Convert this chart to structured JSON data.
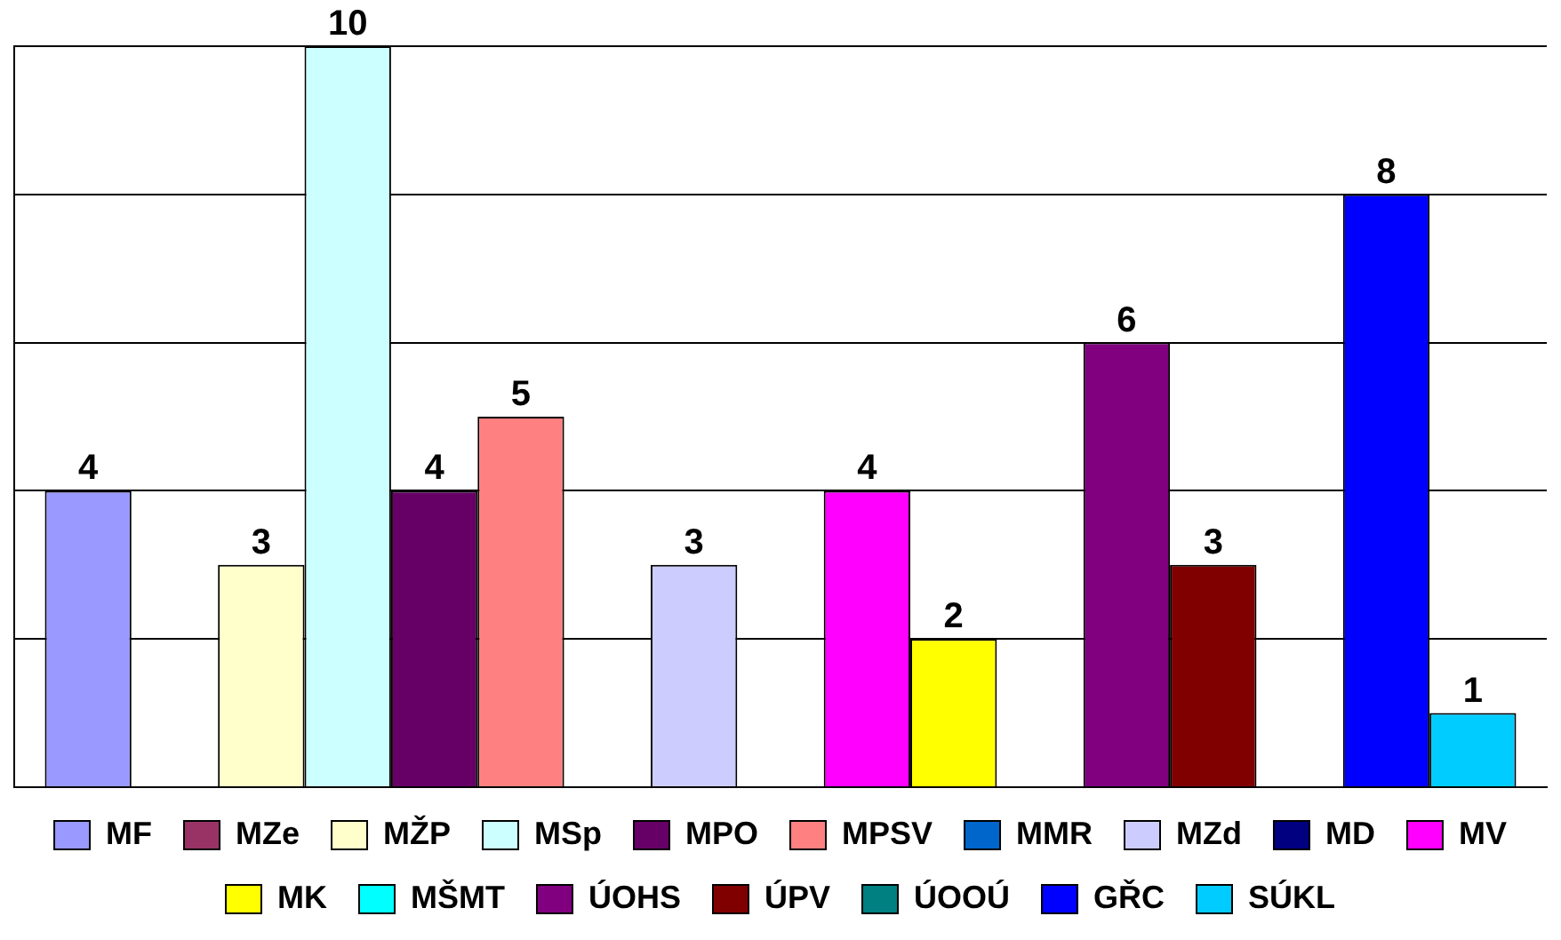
{
  "chart_data": {
    "type": "bar",
    "categories": [
      null
    ],
    "ylim": [
      0,
      10
    ],
    "yticks": [
      0,
      2,
      4,
      6,
      8,
      10
    ],
    "tick_labels": false,
    "grid": "y",
    "legend": "bottom",
    "data_labels": true,
    "series": [
      {
        "name": "MF",
        "color": "#9999ff",
        "values": [
          4
        ]
      },
      {
        "name": "MZe",
        "color": "#993366",
        "values": [
          null
        ]
      },
      {
        "name": "MŽP",
        "color": "#ffffcc",
        "values": [
          3
        ]
      },
      {
        "name": "MSp",
        "color": "#ccffff",
        "values": [
          10
        ]
      },
      {
        "name": "MPO",
        "color": "#660066",
        "values": [
          4
        ]
      },
      {
        "name": "MPSV",
        "color": "#ff8080",
        "values": [
          5
        ]
      },
      {
        "name": "MMR",
        "color": "#0066cc",
        "values": [
          null
        ]
      },
      {
        "name": "MZd",
        "color": "#ccccff",
        "values": [
          3
        ]
      },
      {
        "name": "MD",
        "color": "#000080",
        "values": [
          null
        ]
      },
      {
        "name": "MV",
        "color": "#ff00ff",
        "values": [
          4
        ]
      },
      {
        "name": "MK",
        "color": "#ffff00",
        "values": [
          2
        ]
      },
      {
        "name": "MŠMT",
        "color": "#00ffff",
        "values": [
          null
        ]
      },
      {
        "name": "ÚOHS",
        "color": "#800080",
        "values": [
          6
        ]
      },
      {
        "name": "ÚPV",
        "color": "#800000",
        "values": [
          3
        ]
      },
      {
        "name": "ÚOOÚ",
        "color": "#008080",
        "values": [
          null
        ]
      },
      {
        "name": "GŘC",
        "color": "#0000ff",
        "values": [
          8
        ]
      },
      {
        "name": "SÚKL",
        "color": "#00ccff",
        "values": [
          1
        ]
      }
    ]
  }
}
